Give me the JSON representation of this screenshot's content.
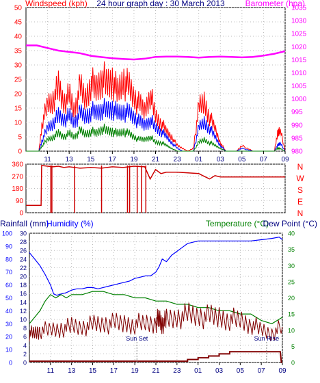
{
  "chart_data": [
    {
      "type": "line",
      "title": "24 hour graph day : 30 March 2013",
      "ylabel": "Windspeed (kph)",
      "y2label": "Barometer (hpa)",
      "ylim": [
        0,
        50
      ],
      "y2lim": [
        980,
        1035
      ],
      "yticks": [
        "0",
        "5",
        "10",
        "15",
        "20",
        "25",
        "30",
        "35",
        "40",
        "45",
        "50"
      ],
      "y2ticks": [
        "980",
        "985",
        "990",
        "995",
        "1000",
        "1005",
        "1010",
        "1015",
        "1020",
        "1025",
        "1030",
        "1035"
      ],
      "x_ticks": [
        "11",
        "13",
        "15",
        "17",
        "19",
        "21",
        "23",
        "01",
        "03",
        "05",
        "07",
        "09"
      ],
      "series": [
        {
          "name": "Windspeed (kph)",
          "color": "#ff0000",
          "axis": "left",
          "x": [
            9,
            10.2,
            10.5,
            11,
            11.5,
            12,
            12.5,
            13,
            13.5,
            14,
            14.5,
            15,
            15.5,
            16,
            16.5,
            17,
            17.5,
            18,
            18.5,
            19,
            19.5,
            20,
            20.5,
            21,
            21.5,
            22,
            22.5,
            23,
            23.5,
            24,
            24.5,
            25,
            25.5,
            26,
            26.5,
            27,
            27.5,
            28,
            28.5,
            29,
            30,
            31,
            32,
            32.3,
            32.5,
            33
          ],
          "y": [
            0,
            0,
            10,
            16,
            18,
            22,
            17,
            19,
            14,
            22,
            18,
            24,
            21,
            26,
            23,
            25,
            20,
            25,
            22,
            19,
            16,
            14,
            20,
            12,
            10,
            7,
            5,
            2,
            1,
            0,
            1,
            15,
            17,
            12,
            8,
            3,
            0,
            0,
            0,
            2,
            0,
            0,
            0,
            6,
            8,
            0
          ]
        },
        {
          "name": "Wind average",
          "color": "#0000ff",
          "axis": "left",
          "x": [
            9,
            10.2,
            10.5,
            11,
            11.5,
            12,
            12.5,
            13,
            13.5,
            14,
            14.5,
            15,
            15.5,
            16,
            16.5,
            17,
            17.5,
            18,
            18.5,
            19,
            19.5,
            20,
            20.5,
            21,
            21.5,
            22,
            22.5,
            23,
            23.5,
            24,
            24.5,
            25,
            25.5,
            26,
            26.5,
            27,
            27.5,
            28,
            28.5,
            29,
            30,
            31,
            32,
            32.3,
            32.5,
            33
          ],
          "y": [
            0,
            0,
            4,
            8,
            10,
            12,
            11,
            12,
            10,
            13,
            12,
            14,
            13,
            15,
            14,
            15,
            13,
            14,
            13,
            12,
            10,
            9,
            11,
            8,
            7,
            5,
            3,
            1,
            0,
            0,
            0,
            8,
            10,
            8,
            5,
            2,
            0,
            0,
            0,
            1,
            0,
            0,
            0,
            2,
            3,
            0
          ]
        },
        {
          "name": "Wind gust low",
          "color": "#008000",
          "axis": "left",
          "x": [
            9,
            10.2,
            10.5,
            11,
            11.5,
            12,
            12.5,
            13,
            13.5,
            14,
            14.5,
            15,
            15.5,
            16,
            16.5,
            17,
            17.5,
            18,
            18.5,
            19,
            19.5,
            20,
            20.5,
            21,
            21.5,
            22,
            22.5,
            23,
            23.5,
            24,
            24.5,
            25,
            25.5,
            26,
            26.5,
            27,
            27.5,
            28,
            28.5,
            29,
            30,
            31,
            32,
            32.3,
            32.5,
            33
          ],
          "y": [
            0,
            0,
            2,
            4,
            5,
            6,
            5,
            6,
            5,
            7,
            6,
            7,
            6,
            8,
            7,
            7,
            6,
            7,
            6,
            5,
            4,
            4,
            5,
            3,
            3,
            2,
            1,
            0,
            0,
            0,
            0,
            3,
            4,
            3,
            2,
            1,
            0,
            0,
            0,
            0,
            0,
            0,
            0,
            1,
            1,
            0
          ]
        },
        {
          "name": "Barometer (hpa)",
          "color": "#ff00ff",
          "axis": "right",
          "x": [
            9,
            10,
            11,
            12,
            13,
            14,
            15,
            16,
            17,
            18,
            19,
            20,
            21,
            22,
            23,
            24,
            25,
            26,
            27,
            28,
            29,
            30,
            31,
            32,
            33
          ],
          "y": [
            1020.5,
            1020.5,
            1019.5,
            1018.5,
            1018,
            1017.5,
            1016.5,
            1016,
            1015.6,
            1015.3,
            1015.1,
            1015.4,
            1016.1,
            1016.2,
            1016.2,
            1016.1,
            1015.8,
            1016.1,
            1016.2,
            1016.1,
            1015.9,
            1016.1,
            1016.6,
            1017.3,
            1018.3
          ]
        }
      ]
    },
    {
      "type": "line",
      "ylim": [
        0,
        360
      ],
      "yticks": [
        "0",
        "90",
        "180",
        "270",
        "360"
      ],
      "compass": [
        "N",
        "W",
        "S",
        "E",
        "N"
      ],
      "x_ticks": [
        "11",
        "13",
        "15",
        "17",
        "19",
        "21",
        "23",
        "01",
        "03",
        "05",
        "07",
        "09"
      ],
      "series": [
        {
          "name": "Wind direction",
          "color": "#cc0000",
          "x": [
            9,
            10.4,
            10.45,
            11,
            11.5,
            12,
            12.5,
            13,
            14,
            15,
            16,
            17,
            18,
            19,
            20,
            20.5,
            21,
            21.5,
            22,
            23,
            24,
            25,
            25.5,
            26,
            26.5,
            27,
            28,
            29,
            30,
            31,
            32,
            33
          ],
          "y": [
            55,
            55,
            350,
            345,
            340,
            345,
            335,
            340,
            330,
            335,
            330,
            340,
            335,
            345,
            340,
            250,
            320,
            290,
            300,
            300,
            295,
            290,
            270,
            250,
            275,
            265,
            265,
            265,
            265,
            265,
            265,
            265
          ]
        },
        {
          "name": "Direction drops",
          "color": "#cc0000",
          "points": [
            {
              "x": 11.3,
              "y": 0
            },
            {
              "x": 11.4,
              "y": 0
            },
            {
              "x": 13.5,
              "y": 0
            },
            {
              "x": 16,
              "y": 0
            },
            {
              "x": 18.4,
              "y": 0
            },
            {
              "x": 18.6,
              "y": 0
            },
            {
              "x": 19.3,
              "y": 0
            },
            {
              "x": 19.7,
              "y": 0
            },
            {
              "x": 20.1,
              "y": 0
            }
          ]
        }
      ]
    },
    {
      "type": "line",
      "ylabel": "Rainfall (mm)",
      "ylabel2": "Humidity (%)",
      "y2label": "Temperature (°C)",
      "y3label": "Dew Point (°C)",
      "ylim": [
        0,
        30
      ],
      "humidity_lim": [
        0,
        100
      ],
      "y2lim": [
        0,
        40
      ],
      "rain_ticks": [
        "0",
        "2",
        "4",
        "6",
        "8",
        "10",
        "12",
        "14",
        "16",
        "18",
        "20",
        "22",
        "24",
        "26",
        "28",
        "30"
      ],
      "humidity_ticks": [
        "0",
        "10",
        "20",
        "30",
        "40",
        "50",
        "60",
        "70",
        "80",
        "90",
        "100"
      ],
      "temp_ticks": [
        "0",
        "5",
        "10",
        "15",
        "20",
        "25",
        "30",
        "35",
        "40"
      ],
      "x_ticks": [
        "11",
        "13",
        "15",
        "17",
        "19",
        "21",
        "23",
        "01",
        "03",
        "05",
        "07",
        "09"
      ],
      "annotations": [
        {
          "text": "Sun Set",
          "x": 19.2
        },
        {
          "text": "Sun Rise",
          "x": 31.5
        }
      ],
      "series": [
        {
          "name": "Humidity (%)",
          "color": "#0000ff",
          "axis": "humidity",
          "x": [
            9,
            9.5,
            10,
            10.5,
            11,
            11.3,
            11.6,
            12,
            12.5,
            13,
            13.5,
            14,
            14.5,
            15,
            15.5,
            16,
            16.5,
            17,
            17.5,
            18,
            18.5,
            19,
            19.5,
            20,
            20.5,
            21,
            21.3,
            21.6,
            22,
            22.5,
            23,
            23.5,
            24,
            24.5,
            25,
            25.5,
            26,
            27,
            28,
            29,
            30,
            31,
            32,
            32.7,
            33
          ],
          "y": [
            85,
            80,
            75,
            68,
            60,
            53,
            52,
            53,
            54,
            56,
            57,
            57,
            58,
            58,
            57,
            58,
            59,
            60,
            61,
            62,
            63,
            65,
            66,
            67,
            67,
            70,
            74,
            80,
            78,
            83,
            86,
            89,
            92,
            93,
            94,
            94,
            94,
            94,
            94,
            94,
            94,
            95,
            96,
            97,
            95
          ]
        },
        {
          "name": "Temperature (°C)",
          "color": "#008000",
          "axis": "temp",
          "x": [
            9,
            9.5,
            10,
            10.5,
            11,
            11.5,
            12,
            12.5,
            13,
            14,
            15,
            16,
            17,
            18,
            19,
            20,
            21,
            22,
            23,
            24,
            25,
            26,
            27,
            28,
            29,
            30,
            31,
            32,
            33
          ],
          "y": [
            12,
            14,
            16,
            19,
            21,
            20,
            21,
            20,
            21,
            21,
            22,
            22,
            21,
            21,
            20,
            20,
            19,
            19,
            18,
            18,
            17,
            17,
            16,
            16,
            15,
            15,
            13,
            12,
            14
          ]
        },
        {
          "name": "Dew Point (°C)",
          "color": "#800000",
          "axis": "temp",
          "x": [
            9,
            9.5,
            10,
            11,
            12,
            13,
            14,
            15,
            16,
            17,
            18,
            19,
            20,
            21,
            21.3,
            21.6,
            22,
            23,
            24,
            25,
            26,
            27,
            28,
            29,
            30,
            31,
            32,
            33
          ],
          "y": [
            9,
            9,
            10,
            10,
            10.5,
            11,
            11,
            11.5,
            12,
            12,
            12,
            12,
            12,
            12.5,
            13.5,
            12,
            13,
            14,
            14.5,
            14.5,
            14,
            14,
            13.5,
            13,
            12,
            10,
            9,
            11
          ]
        },
        {
          "name": "Rainfall (mm)",
          "color": "#800000",
          "axis": "rain",
          "x": [
            9,
            23.5,
            24,
            24,
            25,
            25,
            26,
            26,
            27,
            27,
            28,
            28,
            29,
            30,
            31,
            32,
            32.8,
            32.9,
            33
          ],
          "y": [
            0.3,
            0.3,
            0.3,
            0.7,
            0.7,
            1.1,
            1.1,
            1.5,
            1.5,
            2.0,
            2.0,
            2.5,
            2.5,
            2.5,
            2.5,
            2.5,
            2.5,
            0,
            0
          ]
        }
      ]
    }
  ]
}
